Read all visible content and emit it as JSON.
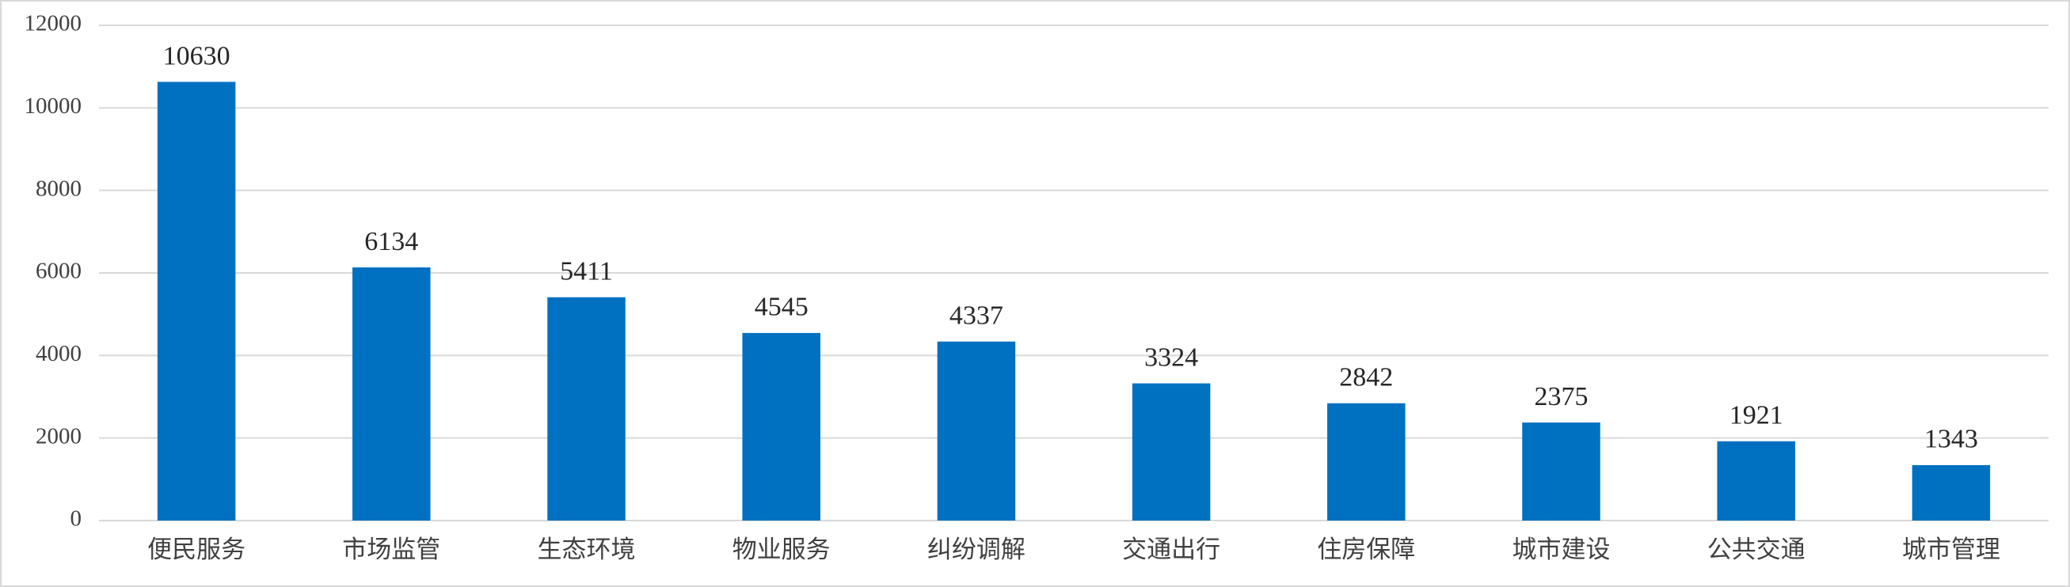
{
  "chart_data": {
    "type": "bar",
    "categories": [
      "便民服务",
      "市场监管",
      "生态环境",
      "物业服务",
      "纠纷调解",
      "交通出行",
      "住房保障",
      "城市建设",
      "公共交通",
      "城市管理"
    ],
    "values": [
      10630,
      6134,
      5411,
      4545,
      4337,
      3324,
      2842,
      2375,
      1921,
      1343
    ],
    "color": "#0070c0",
    "ylim": [
      0,
      12000
    ],
    "yticks": [
      0,
      2000,
      4000,
      6000,
      8000,
      10000,
      12000
    ],
    "grid": true
  }
}
